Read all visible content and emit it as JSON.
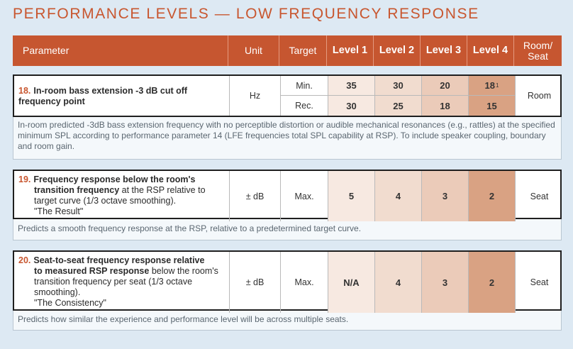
{
  "title": "PERFORMANCE LEVELS — LOW FREQUENCY RESPONSE",
  "columns": {
    "parameter": "Parameter",
    "unit": "Unit",
    "target": "Target",
    "level1": "Level 1",
    "level2": "Level 2",
    "level3": "Level 3",
    "level4": "Level 4",
    "room_seat": "Room/ Seat"
  },
  "colors": {
    "accent": "#c65630",
    "level1": "#f7e9e1",
    "level2": "#f1dccf",
    "level3": "#ebcbb9",
    "level4": "#d9a283"
  },
  "rows": [
    {
      "number": "18.",
      "name": "In-room bass extension -3 dB cut off frequency point",
      "unit": "Hz",
      "targets": [
        "Min.",
        "Rec."
      ],
      "min": [
        "35",
        "30",
        "20",
        "18"
      ],
      "min_footnote": "1",
      "rec": [
        "30",
        "25",
        "18",
        "15"
      ],
      "room_seat": "Room",
      "description": "In-room predicted -3dB bass extension frequency with no perceptible distortion or audible mechanical resonances (e.g., rattles) at the specified minimum SPL according to performance parameter 14 (LFE frequencies total SPL capability at RSP). To include speaker coupling, boundary and room gain."
    },
    {
      "number": "19.",
      "name_bold_1": "Frequency response below the room's",
      "name_bold_2": "transition frequency",
      "name_rest": " at the RSP relative to target curve (1/3 octave smoothing).",
      "quote": "\"The Result\"",
      "unit": "± dB",
      "target": "Max.",
      "levels": [
        "5",
        "4",
        "3",
        "2"
      ],
      "room_seat": "Seat",
      "description": "Predicts a smooth frequency response at the RSP, relative to a predetermined target curve."
    },
    {
      "number": "20.",
      "name_bold_1": "Seat-to-seat frequency response relative",
      "name_bold_2": "to measured RSP response",
      "name_rest": " below the room's transition frequency per seat (1/3 octave smoothing).",
      "quote": "\"The Consistency\"",
      "unit": "± dB",
      "target": "Max.",
      "levels": [
        "N/A",
        "4",
        "3",
        "2"
      ],
      "room_seat": "Seat",
      "description": "Predicts how similar the experience and performance level will be across multiple seats."
    }
  ]
}
